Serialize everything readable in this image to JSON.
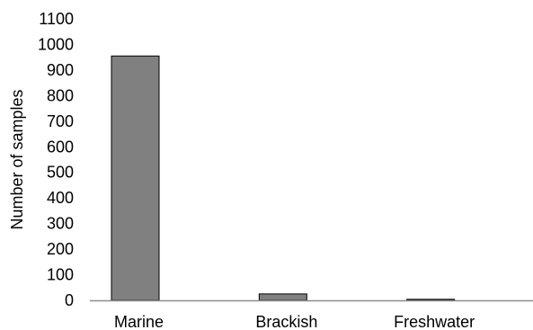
{
  "chart_data": {
    "type": "bar",
    "title": "",
    "xlabel": "",
    "ylabel": "Number of samples",
    "categories": [
      "Marine",
      "Brackish",
      "Freshwater"
    ],
    "values": [
      955,
      25,
      4
    ],
    "ylim": [
      0,
      1100
    ],
    "yticks": [
      0,
      100,
      200,
      300,
      400,
      500,
      600,
      700,
      800,
      900,
      1000,
      1100
    ],
    "grid": false,
    "legend": "none",
    "colors": {
      "bar_fill": "#808080",
      "bar_stroke": "#000000",
      "axis": "#8c8c8c",
      "text": "#000000"
    }
  }
}
